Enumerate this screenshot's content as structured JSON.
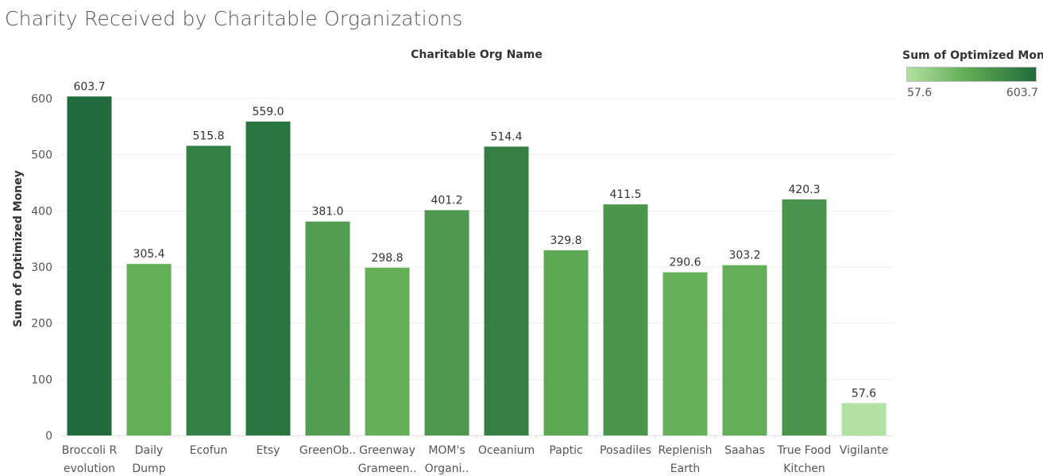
{
  "title": "Charity Received by Charitable Organizations",
  "legend": {
    "title": "Sum of Optimized Money",
    "min_label": "57.6",
    "max_label": "603.7",
    "color_low": "#b3e0a3",
    "color_high": "#216b3c"
  },
  "colors": {
    "gridline": "#ededed",
    "tick_text": "#555555",
    "axis_title": "#333333",
    "data_label": "#333333"
  },
  "chart_data": {
    "type": "bar",
    "title": "Charity Received by Charitable Organizations",
    "xlabel": "Charitable Org Name",
    "ylabel": "Sum of Optimized Money",
    "ylim": [
      0,
      660
    ],
    "yticks": [
      0,
      100,
      200,
      300,
      400,
      500,
      600
    ],
    "grid": true,
    "legend_position": "top-right",
    "categories": [
      [
        "Broccoli R",
        "evolution"
      ],
      [
        "Daily",
        "Dump"
      ],
      [
        "Ecofun"
      ],
      [
        "Etsy"
      ],
      [
        "GreenOb.."
      ],
      [
        "Greenway",
        "Grameen.."
      ],
      [
        "MOM's",
        "Organi.."
      ],
      [
        "Oceanium"
      ],
      [
        "Paptic"
      ],
      [
        "Posadiles"
      ],
      [
        "Replenish",
        "Earth"
      ],
      [
        "Saahas"
      ],
      [
        "True Food",
        "Kitchen"
      ],
      [
        "Vigilante"
      ]
    ],
    "values": [
      603.7,
      305.4,
      515.8,
      559.0,
      381.0,
      298.8,
      401.2,
      514.4,
      329.8,
      411.5,
      290.6,
      303.2,
      420.3,
      57.6
    ],
    "data_labels": [
      "603.7",
      "305.4",
      "515.8",
      "559.0",
      "381.0",
      "298.8",
      "401.2",
      "514.4",
      "329.8",
      "411.5",
      "290.6",
      "303.2",
      "420.3",
      "57.6"
    ]
  }
}
